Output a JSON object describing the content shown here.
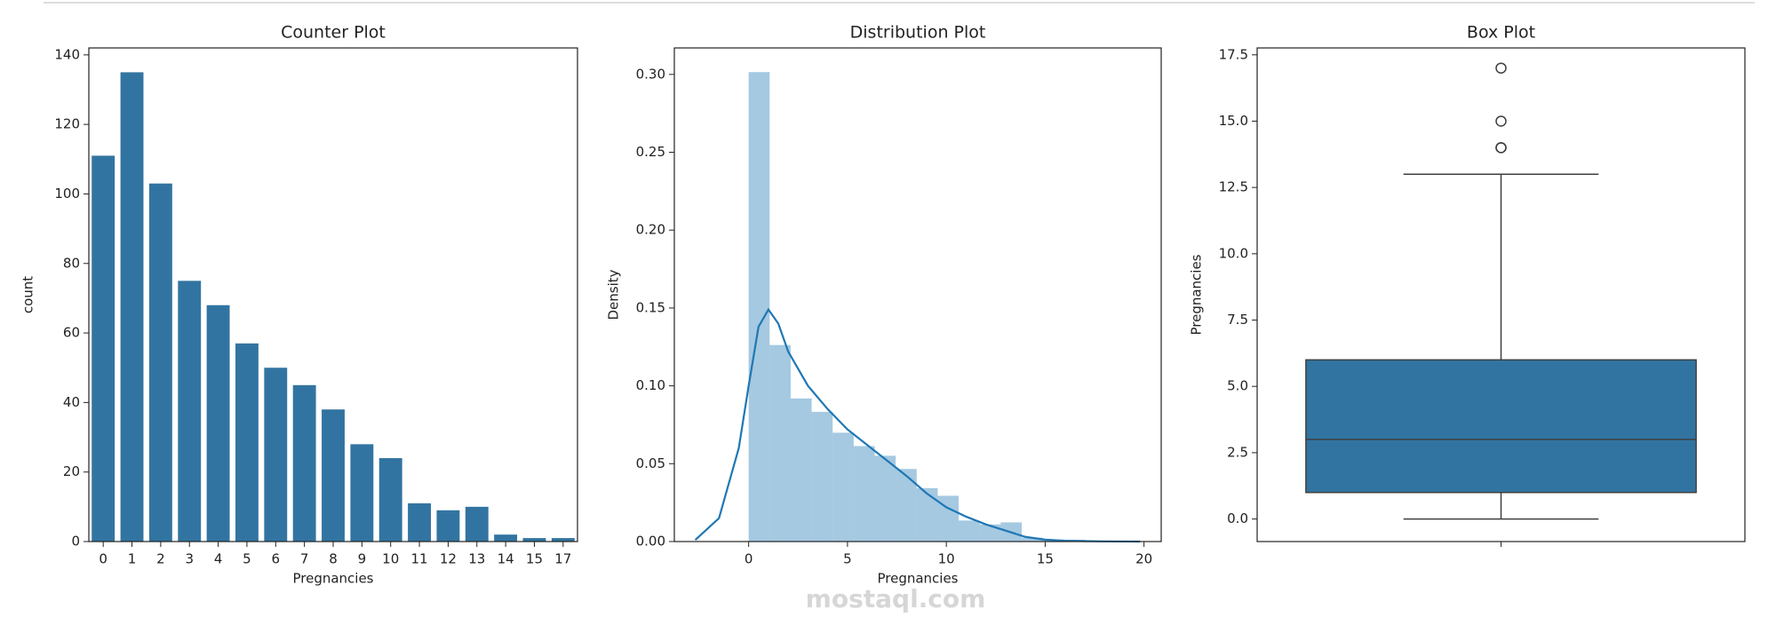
{
  "chart_data": [
    {
      "type": "bar",
      "title": "Counter Plot",
      "xlabel": "Pregnancies",
      "ylabel": "count",
      "categories": [
        "0",
        "1",
        "2",
        "3",
        "4",
        "5",
        "6",
        "7",
        "8",
        "9",
        "10",
        "11",
        "12",
        "13",
        "14",
        "15",
        "17"
      ],
      "values": [
        111,
        135,
        103,
        75,
        68,
        57,
        50,
        45,
        38,
        28,
        24,
        11,
        9,
        10,
        2,
        1,
        1
      ],
      "color": "#3274a1",
      "ylim": [
        0,
        142
      ],
      "yticks": [
        0,
        20,
        40,
        60,
        80,
        100,
        120,
        140
      ]
    },
    {
      "type": "histogram",
      "title": "Distribution Plot",
      "xlabel": "Pregnancies",
      "ylabel": "Density",
      "bins": [
        0,
        1.0625,
        2.125,
        3.1875,
        4.25,
        5.3125,
        6.375,
        7.4375,
        8.5,
        9.5625,
        10.625,
        11.6875,
        12.75,
        13.8125,
        14.875,
        15.9375,
        17
      ],
      "values": [
        0.3015,
        0.1262,
        0.0919,
        0.0833,
        0.0699,
        0.0613,
        0.0551,
        0.0466,
        0.0343,
        0.0294,
        0.0135,
        0.011,
        0.0123,
        0.0025,
        0.0012,
        0.0012
      ],
      "color": "#1f77b4",
      "opacity": 0.4,
      "kde": {
        "color": "#1f77b4",
        "x": [
          -2.7,
          -1.5,
          -0.5,
          0,
          0.5,
          1,
          1.5,
          2,
          3,
          4,
          5,
          6,
          7,
          8,
          9,
          10,
          11,
          12,
          13,
          14,
          15,
          16,
          17,
          18,
          19.8
        ],
        "values": [
          0.001,
          0.015,
          0.06,
          0.1,
          0.138,
          0.149,
          0.14,
          0.122,
          0.1,
          0.085,
          0.072,
          0.062,
          0.052,
          0.042,
          0.031,
          0.022,
          0.016,
          0.011,
          0.007,
          0.003,
          0.0012,
          0.0005,
          0.0003,
          0.0001,
          0
        ]
      },
      "xlim": [
        -3.76,
        20.87
      ],
      "xticks": [
        0,
        5,
        10,
        15,
        20
      ],
      "ylim": [
        0,
        0.317
      ],
      "yticks": [
        {
          "value": 0,
          "label": "0.00"
        },
        {
          "value": 0.05,
          "label": "0.05"
        },
        {
          "value": 0.1,
          "label": "0.10"
        },
        {
          "value": 0.15,
          "label": "0.15"
        },
        {
          "value": 0.2,
          "label": "0.20"
        },
        {
          "value": 0.25,
          "label": "0.25"
        },
        {
          "value": 0.3,
          "label": "0.30"
        }
      ]
    },
    {
      "type": "box",
      "title": "Box Plot",
      "ylabel": "Pregnancies",
      "color": "#3274a1",
      "box": {
        "min": 0,
        "q1": 1,
        "median": 3,
        "q3": 6,
        "max": 13,
        "outliers": [
          14,
          14,
          15,
          17
        ]
      },
      "ylim": [
        -0.85,
        17.76
      ],
      "yticks": [
        {
          "value": 0,
          "label": "0.0"
        },
        {
          "value": 2.5,
          "label": "2.5"
        },
        {
          "value": 5,
          "label": "5.0"
        },
        {
          "value": 7.5,
          "label": "7.5"
        },
        {
          "value": 10,
          "label": "10.0"
        },
        {
          "value": 12.5,
          "label": "12.5"
        },
        {
          "value": 15,
          "label": "15.0"
        },
        {
          "value": 17.5,
          "label": "17.5"
        }
      ]
    }
  ],
  "watermark": "mostaql.com"
}
